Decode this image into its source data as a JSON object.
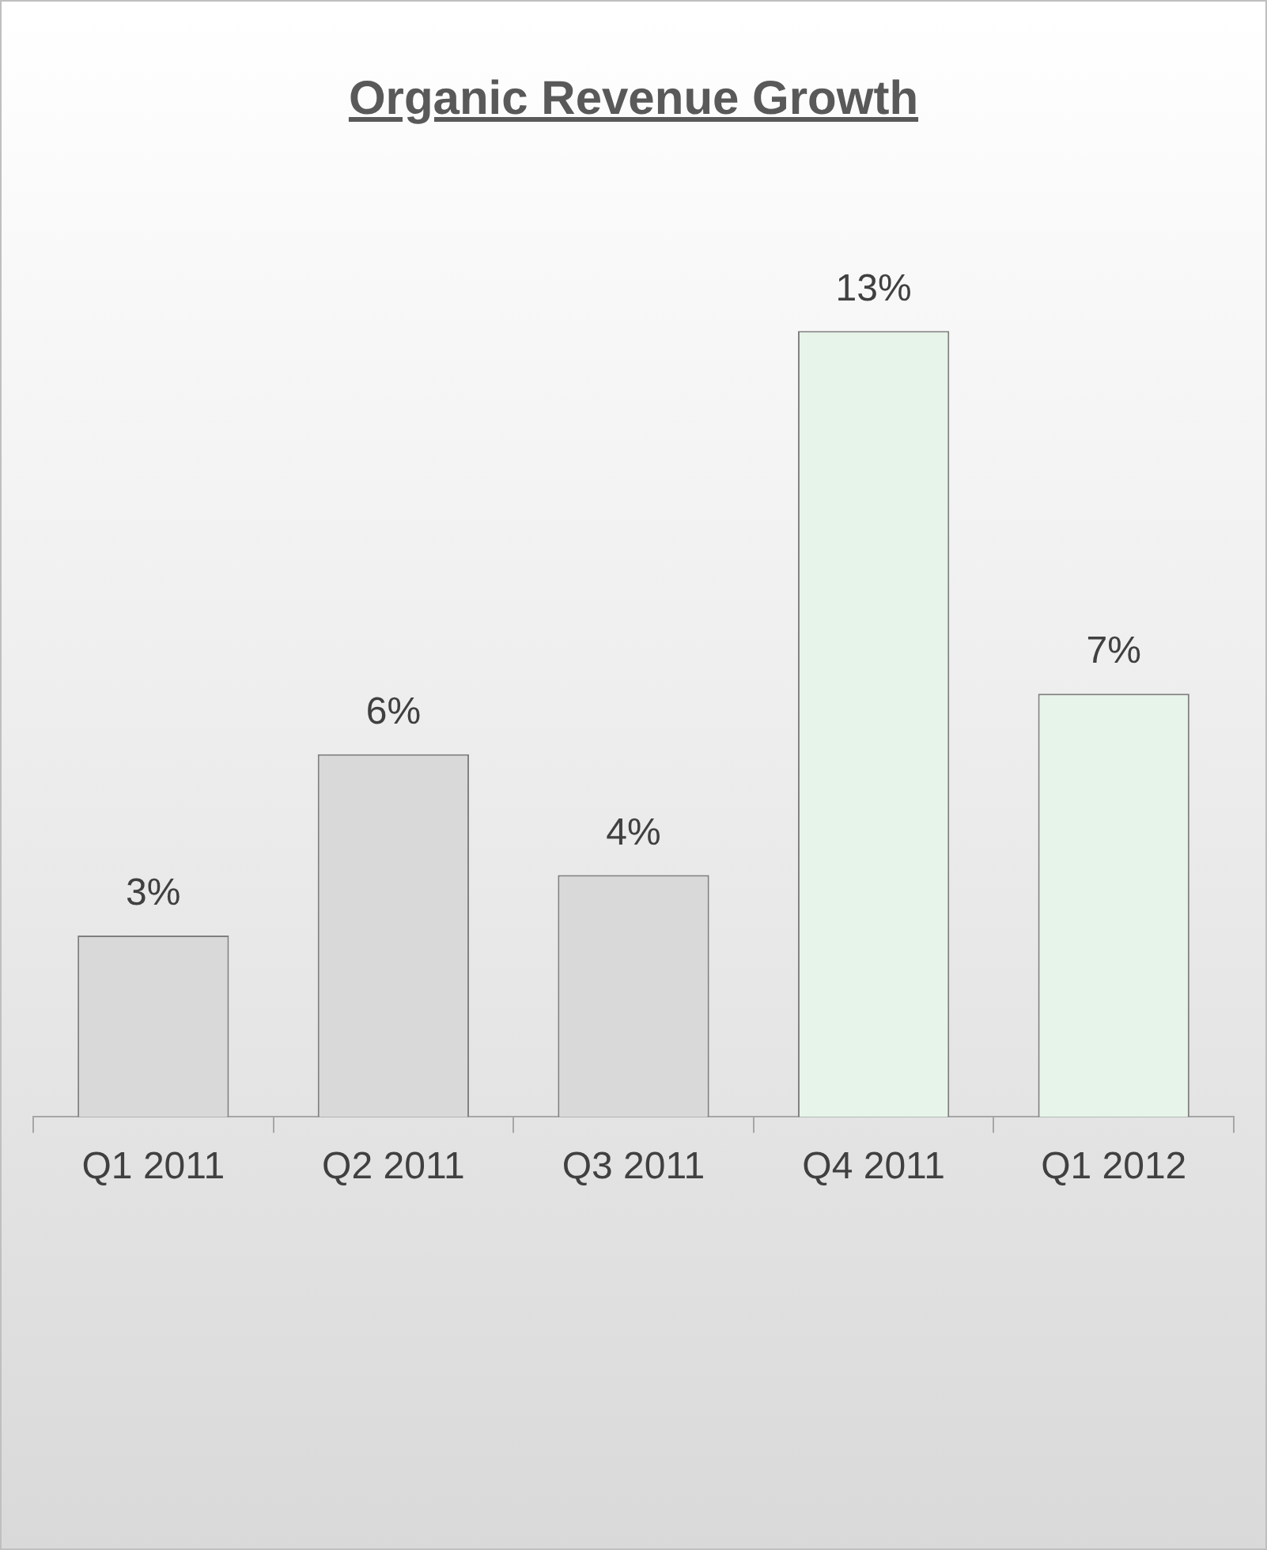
{
  "chart_data": {
    "type": "bar",
    "title": "Organic Revenue Growth",
    "categories": [
      "Q1 2011",
      "Q2 2011",
      "Q3 2011",
      "Q4 2011",
      "Q1 2012"
    ],
    "values": [
      3,
      6,
      4,
      13,
      7
    ],
    "colors": [
      "#d9d9d9",
      "#d9d9d9",
      "#d9d9d9",
      "#e6f4ea",
      "#e6f4ea"
    ],
    "value_labels": [
      "3%",
      "6%",
      "4%",
      "13%",
      "7%"
    ],
    "legend": false
  }
}
